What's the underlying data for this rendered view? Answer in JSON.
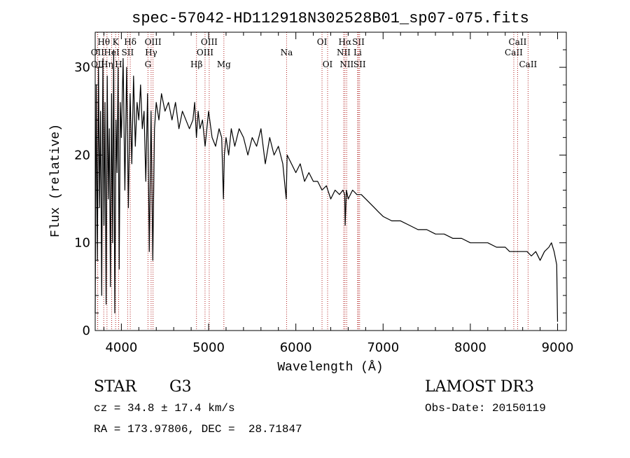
{
  "chart_data": {
    "type": "line",
    "title": "spec-57042-HD112918N302528B01_sp07-075.fits",
    "xlabel": "Wavelength (Å)",
    "ylabel": "Flux (relative)",
    "xlim": [
      3700,
      9100
    ],
    "ylim": [
      0,
      34
    ],
    "xticks_major": [
      4000,
      5000,
      6000,
      7000,
      8000,
      9000
    ],
    "xticks_minor_step": 200,
    "yticks_major": [
      0,
      10,
      20,
      30
    ],
    "yticks_minor_step": 2,
    "grid": false,
    "line_color": "#000000",
    "line_marker_color": "#b22222",
    "series": [
      {
        "name": "flux",
        "x": [
          3700,
          3712,
          3725,
          3738,
          3750,
          3762,
          3775,
          3788,
          3800,
          3812,
          3825,
          3838,
          3850,
          3862,
          3875,
          3888,
          3900,
          3912,
          3925,
          3938,
          3950,
          3962,
          3975,
          3988,
          4000,
          4020,
          4040,
          4060,
          4080,
          4100,
          4120,
          4140,
          4160,
          4180,
          4200,
          4220,
          4240,
          4260,
          4280,
          4300,
          4320,
          4340,
          4360,
          4380,
          4400,
          4430,
          4460,
          4500,
          4540,
          4580,
          4620,
          4660,
          4700,
          4740,
          4780,
          4820,
          4840,
          4860,
          4880,
          4900,
          4930,
          4960,
          5000,
          5040,
          5080,
          5120,
          5150,
          5170,
          5180,
          5200,
          5230,
          5260,
          5300,
          5350,
          5400,
          5450,
          5500,
          5550,
          5600,
          5650,
          5700,
          5750,
          5800,
          5850,
          5890,
          5900,
          5950,
          6000,
          6050,
          6100,
          6150,
          6200,
          6250,
          6300,
          6350,
          6400,
          6450,
          6500,
          6540,
          6560,
          6565,
          6580,
          6600,
          6650,
          6700,
          6750,
          6800,
          6850,
          6900,
          6950,
          7000,
          7100,
          7200,
          7300,
          7400,
          7500,
          7600,
          7700,
          7800,
          7900,
          8000,
          8100,
          8200,
          8300,
          8400,
          8450,
          8500,
          8550,
          8600,
          8650,
          8700,
          8750,
          8800,
          8850,
          8900,
          8930,
          8960,
          8990,
          9000
        ],
        "y": [
          2,
          28,
          8,
          30,
          14,
          25,
          4,
          31,
          12,
          26,
          3,
          29,
          15,
          23,
          5,
          27,
          10,
          32,
          2,
          24,
          18,
          30,
          7,
          26,
          22,
          31,
          16,
          30,
          14,
          27,
          19,
          29,
          21,
          26,
          24,
          28,
          23,
          25,
          17,
          27,
          9,
          25,
          8,
          23,
          26,
          24,
          27,
          25,
          26,
          24,
          26,
          23,
          25,
          24,
          23,
          24,
          26,
          22,
          25,
          23,
          24,
          21,
          25,
          22,
          21,
          23,
          22,
          15,
          20,
          22,
          20,
          23,
          21,
          23,
          22,
          20,
          22,
          21,
          23,
          19,
          22,
          20,
          21,
          19,
          15,
          20,
          19,
          18,
          19,
          17,
          18,
          17,
          17,
          16,
          16.5,
          15,
          16,
          15.5,
          16,
          15.5,
          12,
          16,
          15,
          16,
          15.5,
          15.5,
          15,
          14.5,
          14,
          13.5,
          13,
          12.5,
          12.5,
          12,
          11.5,
          11.5,
          11,
          11,
          10.5,
          10.5,
          10,
          10,
          10,
          9.5,
          9.5,
          9,
          9,
          9,
          9,
          9,
          8.5,
          9,
          8,
          9,
          9.5,
          10,
          9,
          7.5,
          1
        ]
      }
    ],
    "line_markers": [
      {
        "name": "OII",
        "x": 3727,
        "label": "OII",
        "row": 2
      },
      {
        "name": "OII-b",
        "x": 3729,
        "label": "OII",
        "row": 3
      },
      {
        "name": "H-theta",
        "x": 3798,
        "label": "Hθ",
        "row": 1
      },
      {
        "name": "H-eta",
        "x": 3835,
        "label": "Hη",
        "row": 3
      },
      {
        "name": "HeI",
        "x": 3889,
        "label": "HeI",
        "row": 2
      },
      {
        "name": "K",
        "x": 3934,
        "label": "K",
        "row": 1
      },
      {
        "name": "H",
        "x": 3969,
        "label": "H",
        "row": 3
      },
      {
        "name": "SII-a",
        "x": 4072,
        "label": "SII",
        "row": 2
      },
      {
        "name": "H-delta",
        "x": 4102,
        "label": "Hδ",
        "row": 1
      },
      {
        "name": "G",
        "x": 4305,
        "label": "G",
        "row": 3
      },
      {
        "name": "H-gamma",
        "x": 4341,
        "label": "Hγ",
        "row": 2
      },
      {
        "name": "OIII-a",
        "x": 4363,
        "label": "OIII",
        "row": 1
      },
      {
        "name": "H-beta",
        "x": 4861,
        "label": "Hβ",
        "row": 3
      },
      {
        "name": "OIII-b",
        "x": 4959,
        "label": "OIII",
        "row": 2
      },
      {
        "name": "OIII-c",
        "x": 5007,
        "label": "OIII",
        "row": 1
      },
      {
        "name": "Mg",
        "x": 5175,
        "label": "Mg",
        "row": 3
      },
      {
        "name": "Na",
        "x": 5894,
        "label": "Na",
        "row": 2
      },
      {
        "name": "OI-a",
        "x": 6300,
        "label": "OI",
        "row": 1
      },
      {
        "name": "OI-b",
        "x": 6364,
        "label": "OI",
        "row": 3
      },
      {
        "name": "NII-a",
        "x": 6548,
        "label": "NII",
        "row": 2
      },
      {
        "name": "H-alpha",
        "x": 6563,
        "label": "Hα",
        "row": 1
      },
      {
        "name": "NII-b",
        "x": 6583,
        "label": "NII",
        "row": 3
      },
      {
        "name": "Li",
        "x": 6708,
        "label": "Li",
        "row": 2
      },
      {
        "name": "SII-b",
        "x": 6717,
        "label": "SII",
        "row": 1
      },
      {
        "name": "SII-c",
        "x": 6731,
        "label": "SII",
        "row": 3
      },
      {
        "name": "CaII-a",
        "x": 8498,
        "label": "CaII",
        "row": 2
      },
      {
        "name": "CaII-b",
        "x": 8542,
        "label": "CaII",
        "row": 1
      },
      {
        "name": "CaII-c",
        "x": 8662,
        "label": "CaII",
        "row": 3
      }
    ]
  },
  "info": {
    "object_type": "STAR",
    "subclass": "G3",
    "survey": "LAMOST DR3",
    "redshift_line": "cz = 34.8 ± 17.4 km/s",
    "obs_date_line": "Obs-Date: 20150119",
    "coords_line": "RA = 173.97806, DEC =  28.71847"
  }
}
